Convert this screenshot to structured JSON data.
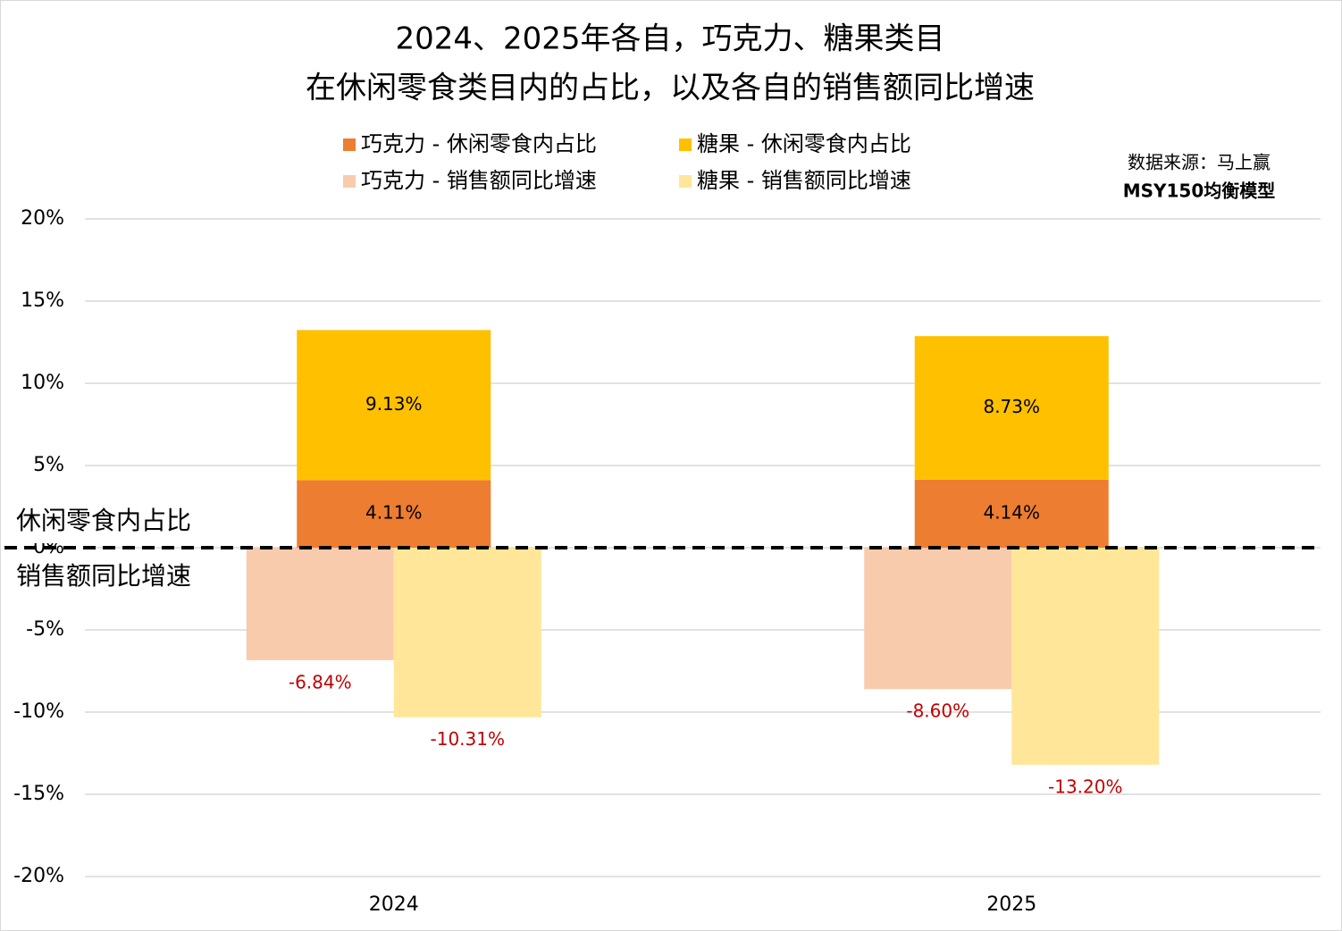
{
  "chart_data": {
    "type": "bar",
    "title": "2024、2025年各自，巧克力、糖果类目",
    "subtitle": "在休闲零食类目内的占比，以及各自的销售额同比增速",
    "source": "数据来源：马上赢",
    "model": "MSY150均衡模型",
    "annotations": [
      "休闲零食内占比",
      "销售额同比增速"
    ],
    "categories": [
      "2024",
      "2025"
    ],
    "series": [
      {
        "name": "巧克力 - 休闲零食内占比",
        "color": "#ED7D31",
        "values": [
          4.11,
          4.14
        ],
        "value_labels": [
          "4.11%",
          "4.14%"
        ]
      },
      {
        "name": "糖果 - 休闲零食内占比",
        "color": "#FFC000",
        "values": [
          9.13,
          8.73
        ],
        "value_labels": [
          "9.13%",
          "8.73%"
        ]
      },
      {
        "name": "巧克力 - 销售额同比增速",
        "color": "#F8CBAD",
        "values": [
          -6.84,
          -8.6
        ],
        "value_labels": [
          "-6.84%",
          "-8.60%"
        ]
      },
      {
        "name": "糖果 - 销售额同比增速",
        "color": "#FFE699",
        "values": [
          -10.31,
          -13.2
        ],
        "value_labels": [
          "-10.31%",
          "-13.20%"
        ]
      }
    ],
    "ylim": [
      -20,
      20
    ],
    "yticks": [
      {
        "value": -20,
        "label": "-20%"
      },
      {
        "value": -15,
        "label": "-15%"
      },
      {
        "value": -10,
        "label": "-10%"
      },
      {
        "value": -5,
        "label": "-5%"
      },
      {
        "value": 0,
        "label": "0%"
      },
      {
        "value": 5,
        "label": "5%"
      },
      {
        "value": 10,
        "label": "10%"
      },
      {
        "value": 15,
        "label": "15%"
      },
      {
        "value": 20,
        "label": "20%"
      }
    ],
    "grid": true
  }
}
